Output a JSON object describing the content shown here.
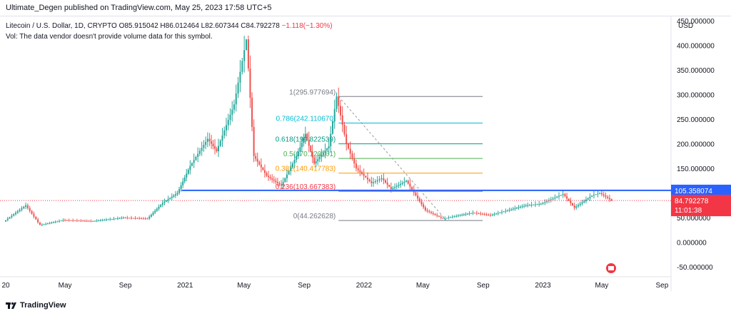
{
  "header": {
    "publisher_line": "Ultimate_Degen published on TradingView.com, May 25, 2023 17:58 UTC+5"
  },
  "legend": {
    "line1_prefix": "Litecoin / U.S. Dollar, 1D, CRYPTO  O85.915042  H86.012464  L82.607344  C84.792278",
    "line1_change": "−1.118(−1.30%)",
    "line2": "Vol: The data vendor doesn't provide volume data for this symbol."
  },
  "currency": "USD",
  "price_labels": {
    "level": "105.358074",
    "last": "84.792278",
    "countdown": "11:01:38"
  },
  "colors": {
    "up": "#26a69a",
    "down": "#ef5350",
    "horizontal_line": "#2962ff",
    "last_price": "#f23645"
  },
  "footer": {
    "brand": "TradingView"
  },
  "chart_data": {
    "type": "candlestick",
    "title": "Litecoin / U.S. Dollar, 1D, CRYPTO",
    "y_axis": {
      "ylim": [
        -70,
        460
      ],
      "ticks": [
        "-50.000000",
        "0.000000",
        "50.000000",
        "100.000000",
        "150.000000",
        "200.000000",
        "250.000000",
        "300.000000",
        "350.000000",
        "400.000000",
        "450.000000"
      ],
      "tick_values": [
        -50,
        0,
        50,
        100,
        150,
        200,
        250,
        300,
        350,
        400,
        450
      ]
    },
    "x_axis": {
      "xlim": [
        "2020-01-01",
        "2023-10-01"
      ],
      "ticks": [
        {
          "date": "2020-01-01",
          "label": "20"
        },
        {
          "date": "2020-05-01",
          "label": "May"
        },
        {
          "date": "2020-09-01",
          "label": "Sep"
        },
        {
          "date": "2021-01-01",
          "label": "2021"
        },
        {
          "date": "2021-05-01",
          "label": "May"
        },
        {
          "date": "2021-09-01",
          "label": "Sep"
        },
        {
          "date": "2022-01-01",
          "label": "2022"
        },
        {
          "date": "2022-05-01",
          "label": "May"
        },
        {
          "date": "2022-09-01",
          "label": "Sep"
        },
        {
          "date": "2023-01-01",
          "label": "2023"
        },
        {
          "date": "2023-05-01",
          "label": "May"
        },
        {
          "date": "2023-09-01",
          "label": "Sep"
        }
      ]
    },
    "price_path": [
      {
        "date": "2020-01-01",
        "value": 42
      },
      {
        "date": "2020-02-15",
        "value": 75
      },
      {
        "date": "2020-03-15",
        "value": 35
      },
      {
        "date": "2020-05-01",
        "value": 45
      },
      {
        "date": "2020-07-01",
        "value": 43
      },
      {
        "date": "2020-09-01",
        "value": 50
      },
      {
        "date": "2020-10-20",
        "value": 48
      },
      {
        "date": "2020-11-20",
        "value": 80
      },
      {
        "date": "2020-12-20",
        "value": 100
      },
      {
        "date": "2021-01-15",
        "value": 155
      },
      {
        "date": "2021-02-20",
        "value": 210
      },
      {
        "date": "2021-03-10",
        "value": 185
      },
      {
        "date": "2021-04-15",
        "value": 280
      },
      {
        "date": "2021-05-10",
        "value": 412
      },
      {
        "date": "2021-05-25",
        "value": 175
      },
      {
        "date": "2021-06-20",
        "value": 135
      },
      {
        "date": "2021-07-20",
        "value": 115
      },
      {
        "date": "2021-08-20",
        "value": 175
      },
      {
        "date": "2021-09-07",
        "value": 220
      },
      {
        "date": "2021-09-25",
        "value": 160
      },
      {
        "date": "2021-10-25",
        "value": 195
      },
      {
        "date": "2021-11-10",
        "value": 296
      },
      {
        "date": "2021-11-30",
        "value": 200
      },
      {
        "date": "2021-12-20",
        "value": 150
      },
      {
        "date": "2022-01-20",
        "value": 120
      },
      {
        "date": "2022-02-10",
        "value": 130
      },
      {
        "date": "2022-03-01",
        "value": 108
      },
      {
        "date": "2022-04-01",
        "value": 125
      },
      {
        "date": "2022-05-10",
        "value": 65
      },
      {
        "date": "2022-06-15",
        "value": 48
      },
      {
        "date": "2022-07-20",
        "value": 55
      },
      {
        "date": "2022-08-15",
        "value": 60
      },
      {
        "date": "2022-09-20",
        "value": 55
      },
      {
        "date": "2022-11-05",
        "value": 68
      },
      {
        "date": "2022-12-01",
        "value": 75
      },
      {
        "date": "2023-01-01",
        "value": 78
      },
      {
        "date": "2023-02-15",
        "value": 98
      },
      {
        "date": "2023-03-10",
        "value": 70
      },
      {
        "date": "2023-04-15",
        "value": 95
      },
      {
        "date": "2023-05-01",
        "value": 100
      },
      {
        "date": "2023-05-25",
        "value": 84.79
      }
    ],
    "horizontal_line": {
      "value": 105.358074,
      "from": "2020-12-25"
    },
    "fibonacci": {
      "from": {
        "date": "2021-11-10",
        "value": 295.977694
      },
      "to": {
        "date": "2022-06-18",
        "value": 44.262628
      },
      "levels": [
        {
          "ratio": "1",
          "value": 295.977694,
          "label": "1(295.977694)",
          "color": "#787b86"
        },
        {
          "ratio": "0.786",
          "value": 242.11067,
          "label": "0.786(242.110670)",
          "color": "#00bcd4"
        },
        {
          "ratio": "0.618",
          "value": 199.822539,
          "label": "0.618(199.822539)",
          "color": "#089981"
        },
        {
          "ratio": "0.5",
          "value": 170.120161,
          "label": "0.5(170.120161)",
          "color": "#4caf50"
        },
        {
          "ratio": "0.382",
          "value": 140.417783,
          "label": "0.382(140.417783)",
          "color": "#ff9800"
        },
        {
          "ratio": "0.236",
          "value": 103.667383,
          "label": "0.236(103.667383)",
          "color": "#f23645"
        },
        {
          "ratio": "0",
          "value": 44.262628,
          "label": "0(44.262628)",
          "color": "#787b86"
        }
      ]
    }
  }
}
